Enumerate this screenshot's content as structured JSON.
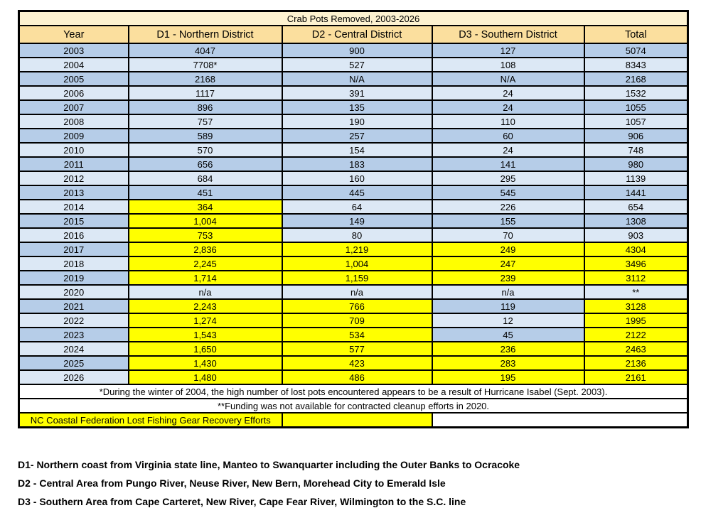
{
  "page": {
    "background": "#FFFFFF"
  },
  "colors": {
    "page_bg": "#FFFFFF",
    "title_bg": "#FDF2D0",
    "header_bg": "#FBDF9E",
    "row_dark": "#B6CDE8",
    "row_light": "#DCE8F5",
    "highlight": "#FFFF00",
    "border": "#000000",
    "text": "#000000"
  },
  "chart_data": {
    "type": "table",
    "title": "Crab Pots Removed, 2003-2026",
    "columns": [
      "Year",
      "D1 - Northern District",
      "D2 - Central District",
      "D3 - Southern District",
      "Total"
    ],
    "rows": [
      {
        "year": "2003",
        "d1": "4047",
        "d2": "900",
        "d3": "127",
        "total": "5074",
        "yellow": []
      },
      {
        "year": "2004",
        "d1": "7708*",
        "d2": "527",
        "d3": "108",
        "total": "8343",
        "yellow": []
      },
      {
        "year": "2005",
        "d1": "2168",
        "d2": "N/A",
        "d3": "N/A",
        "total": "2168",
        "yellow": []
      },
      {
        "year": "2006",
        "d1": "1117",
        "d2": "391",
        "d3": "24",
        "total": "1532",
        "yellow": []
      },
      {
        "year": "2007",
        "d1": "896",
        "d2": "135",
        "d3": "24",
        "total": "1055",
        "yellow": []
      },
      {
        "year": "2008",
        "d1": "757",
        "d2": "190",
        "d3": "110",
        "total": "1057",
        "yellow": []
      },
      {
        "year": "2009",
        "d1": "589",
        "d2": "257",
        "d3": "60",
        "total": "906",
        "yellow": []
      },
      {
        "year": "2010",
        "d1": "570",
        "d2": "154",
        "d3": "24",
        "total": "748",
        "yellow": []
      },
      {
        "year": "2011",
        "d1": "656",
        "d2": "183",
        "d3": "141",
        "total": "980",
        "yellow": []
      },
      {
        "year": "2012",
        "d1": "684",
        "d2": "160",
        "d3": "295",
        "total": "1139",
        "yellow": []
      },
      {
        "year": "2013",
        "d1": "451",
        "d2": "445",
        "d3": "545",
        "total": "1441",
        "yellow": []
      },
      {
        "year": "2014",
        "d1": "364",
        "d2": "64",
        "d3": "226",
        "total": "654",
        "yellow": [
          "d1"
        ]
      },
      {
        "year": "2015",
        "d1": "1,004",
        "d2": "149",
        "d3": "155",
        "total": "1308",
        "yellow": [
          "d1"
        ]
      },
      {
        "year": "2016",
        "d1": "753",
        "d2": "80",
        "d3": "70",
        "total": "903",
        "yellow": [
          "d1"
        ]
      },
      {
        "year": "2017",
        "d1": "2,836",
        "d2": "1,219",
        "d3": "249",
        "total": "4304",
        "yellow": [
          "d1",
          "d2",
          "d3",
          "total"
        ]
      },
      {
        "year": "2018",
        "d1": "2,245",
        "d2": "1,004",
        "d3": "247",
        "total": "3496",
        "yellow": [
          "d1",
          "d2",
          "d3",
          "total"
        ]
      },
      {
        "year": "2019",
        "d1": "1,714",
        "d2": "1,159",
        "d3": "239",
        "total": "3112",
        "yellow": [
          "d1",
          "d2",
          "d3",
          "total"
        ]
      },
      {
        "year": "2020",
        "d1": "n/a",
        "d2": "n/a",
        "d3": "n/a",
        "total": "**",
        "yellow": []
      },
      {
        "year": "2021",
        "d1": "2,243",
        "d2": "766",
        "d3": "119",
        "total": "3128",
        "yellow": [
          "d1",
          "d2",
          "total"
        ]
      },
      {
        "year": "2022",
        "d1": "1,274",
        "d2": "709",
        "d3": "12",
        "total": "1995",
        "yellow": [
          "d1",
          "d2",
          "total"
        ]
      },
      {
        "year": "2023",
        "d1": "1,543",
        "d2": "534",
        "d3": "45",
        "total": "2122",
        "yellow": [
          "d1",
          "d2",
          "total"
        ]
      },
      {
        "year": "2024",
        "d1": "1,650",
        "d2": "577",
        "d3": "236",
        "total": "2463",
        "yellow": [
          "d1",
          "d2",
          "d3",
          "total"
        ]
      },
      {
        "year": "2025",
        "d1": "1,430",
        "d2": "423",
        "d3": "283",
        "total": "2136",
        "yellow": [
          "d1",
          "d2",
          "d3",
          "total"
        ]
      },
      {
        "year": "2026",
        "d1": "1,480",
        "d2": "486",
        "d3": "195",
        "total": "2161",
        "yellow": [
          "d1",
          "d2",
          "d3",
          "total"
        ]
      }
    ],
    "footnotes": [
      "*During the winter of 2004, the high number of lost pots encountered appears to be a result of Hurricane Isabel (Sept. 2003).",
      "**Funding was not available for contracted cleanup efforts in 2020."
    ],
    "legend": "NC Coastal Federation Lost Fishing Gear Recovery Efforts",
    "notes": [
      "D1- Northern coast from Virginia state line, Manteo to Swanquarter including the Outer Banks to Ocracoke",
      "D2 - Central Area from Pungo River, Neuse River, New Bern, Morehead City to Emerald Isle",
      "D3 - Southern Area from Cape Carteret, New River, Cape Fear River, Wilmington to the S.C. line"
    ]
  }
}
